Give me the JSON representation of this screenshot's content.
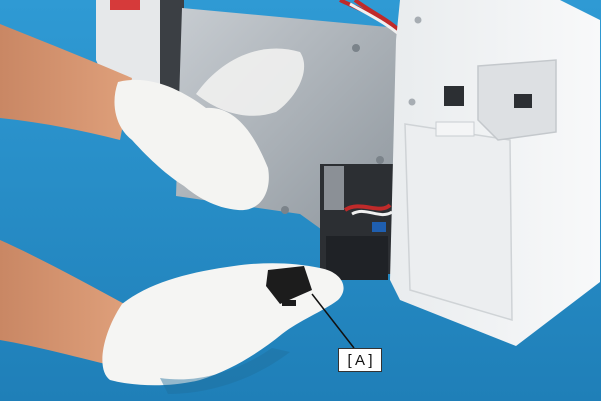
{
  "image": {
    "callout": {
      "label": "[ A ]"
    }
  }
}
